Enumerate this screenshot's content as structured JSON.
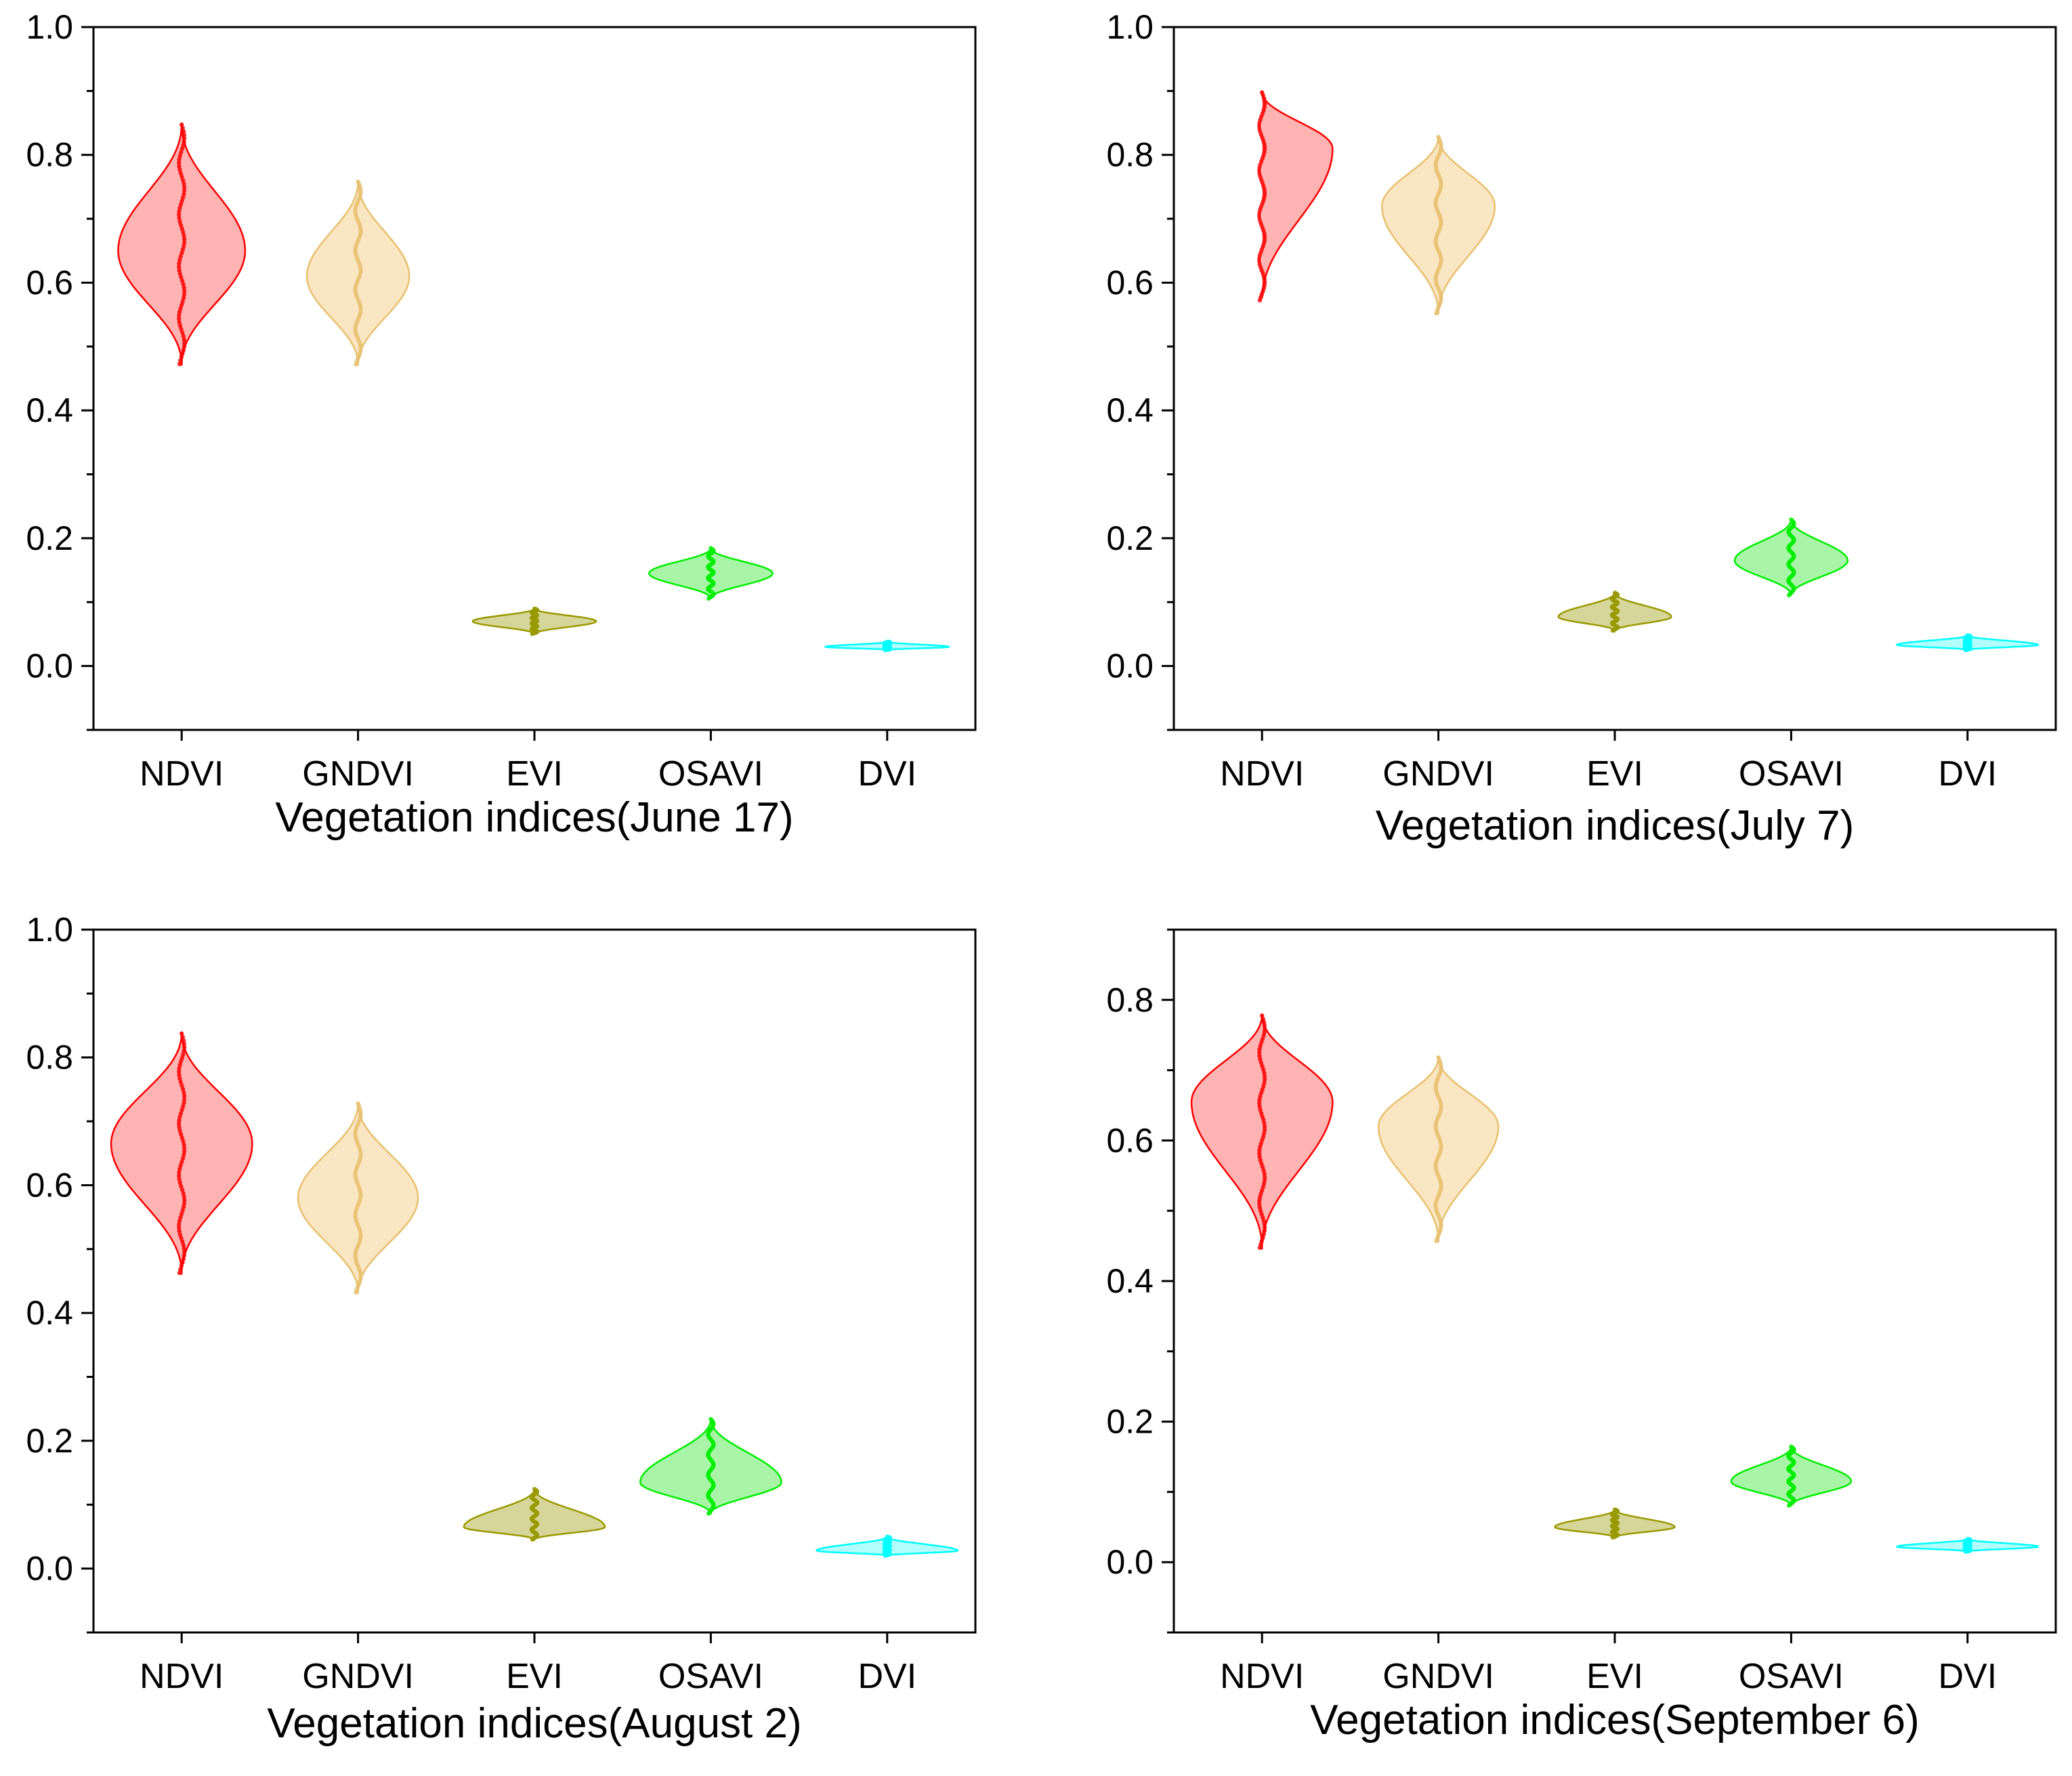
{
  "chart_data": [
    {
      "type": "violin",
      "title": "",
      "xlabel": "Vegetation indices(June 17)",
      "ylabel": "",
      "ylim": [
        -0.1,
        1.0
      ],
      "yticks": [
        "0.0",
        "0.2",
        "0.4",
        "0.6",
        "0.8",
        "1.0"
      ],
      "categories": [
        "NDVI",
        "GNDVI",
        "EVI",
        "OSAVI",
        "DVI"
      ],
      "series": [
        {
          "name": "NDVI",
          "color": "#ff0000",
          "fill": "#ffb3b3",
          "min": 0.47,
          "max": 0.85,
          "mode": 0.65,
          "halfwidth": 0.36
        },
        {
          "name": "GNDVI",
          "color": "#e8c070",
          "fill": "#fae6c2",
          "min": 0.47,
          "max": 0.76,
          "mode": 0.61,
          "halfwidth": 0.29
        },
        {
          "name": "EVI",
          "color": "#999900",
          "fill": "#d6d69a",
          "min": 0.05,
          "max": 0.09,
          "mode": 0.07,
          "halfwidth": 0.35
        },
        {
          "name": "OSAVI",
          "color": "#00ee00",
          "fill": "#a8f5a8",
          "min": 0.105,
          "max": 0.185,
          "mode": 0.145,
          "halfwidth": 0.35
        },
        {
          "name": "DVI",
          "color": "#00ffff",
          "fill": "#b3ffff",
          "min": 0.025,
          "max": 0.038,
          "mode": 0.03,
          "halfwidth": 0.35
        }
      ]
    },
    {
      "type": "violin",
      "title": "",
      "xlabel": "Vegetation indices(July 7)",
      "ylabel": "",
      "ylim": [
        -0.1,
        1.0
      ],
      "yticks": [
        "0.0",
        "0.2",
        "0.4",
        "0.6",
        "0.8",
        "1.0"
      ],
      "categories": [
        "NDVI",
        "GNDVI",
        "EVI",
        "OSAVI",
        "DVI"
      ],
      "series": [
        {
          "name": "NDVI",
          "color": "#ff0000",
          "fill": "#ffb3b3",
          "min": 0.57,
          "max": 0.9,
          "mode": 0.81,
          "halfwidth": 0.4
        },
        {
          "name": "GNDVI",
          "color": "#e8c070",
          "fill": "#fae6c2",
          "min": 0.55,
          "max": 0.83,
          "mode": 0.72,
          "halfwidth": 0.32
        },
        {
          "name": "EVI",
          "color": "#999900",
          "fill": "#d6d69a",
          "min": 0.055,
          "max": 0.115,
          "mode": 0.077,
          "halfwidth": 0.32
        },
        {
          "name": "OSAVI",
          "color": "#00ee00",
          "fill": "#a8f5a8",
          "min": 0.11,
          "max": 0.23,
          "mode": 0.165,
          "halfwidth": 0.32
        },
        {
          "name": "DVI",
          "color": "#00ffff",
          "fill": "#b3ffff",
          "min": 0.025,
          "max": 0.048,
          "mode": 0.033,
          "halfwidth": 0.4
        }
      ]
    },
    {
      "type": "violin",
      "title": "",
      "xlabel": "Vegetation indices(August 2)",
      "ylabel": "",
      "ylim": [
        -0.1,
        1.0
      ],
      "yticks": [
        "0.0",
        "0.2",
        "0.4",
        "0.6",
        "0.8",
        "1.0"
      ],
      "categories": [
        "NDVI",
        "GNDVI",
        "EVI",
        "OSAVI",
        "DVI"
      ],
      "series": [
        {
          "name": "NDVI",
          "color": "#ff0000",
          "fill": "#ffb3b3",
          "min": 0.46,
          "max": 0.84,
          "mode": 0.665,
          "halfwidth": 0.4
        },
        {
          "name": "GNDVI",
          "color": "#e8c070",
          "fill": "#fae6c2",
          "min": 0.43,
          "max": 0.73,
          "mode": 0.58,
          "halfwidth": 0.34
        },
        {
          "name": "EVI",
          "color": "#999900",
          "fill": "#d6d69a",
          "min": 0.045,
          "max": 0.125,
          "mode": 0.065,
          "halfwidth": 0.4
        },
        {
          "name": "OSAVI",
          "color": "#00ee00",
          "fill": "#a8f5a8",
          "min": 0.085,
          "max": 0.235,
          "mode": 0.135,
          "halfwidth": 0.4
        },
        {
          "name": "DVI",
          "color": "#00ffff",
          "fill": "#b3ffff",
          "min": 0.02,
          "max": 0.05,
          "mode": 0.028,
          "halfwidth": 0.4
        }
      ]
    },
    {
      "type": "violin",
      "title": "",
      "xlabel": "Vegetation indices(September 6)",
      "ylabel": "",
      "ylim": [
        -0.1,
        0.9
      ],
      "yticks": [
        "0.0",
        "0.2",
        "0.4",
        "0.6",
        "0.8"
      ],
      "categories": [
        "NDVI",
        "GNDVI",
        "EVI",
        "OSAVI",
        "DVI"
      ],
      "series": [
        {
          "name": "NDVI",
          "color": "#ff0000",
          "fill": "#ffb3b3",
          "min": 0.445,
          "max": 0.78,
          "mode": 0.655,
          "halfwidth": 0.4
        },
        {
          "name": "GNDVI",
          "color": "#e8c070",
          "fill": "#fae6c2",
          "min": 0.455,
          "max": 0.72,
          "mode": 0.62,
          "halfwidth": 0.34
        },
        {
          "name": "EVI",
          "color": "#999900",
          "fill": "#d6d69a",
          "min": 0.035,
          "max": 0.075,
          "mode": 0.05,
          "halfwidth": 0.34
        },
        {
          "name": "OSAVI",
          "color": "#00ee00",
          "fill": "#a8f5a8",
          "min": 0.08,
          "max": 0.165,
          "mode": 0.115,
          "halfwidth": 0.34
        },
        {
          "name": "DVI",
          "color": "#00ffff",
          "fill": "#b3ffff",
          "min": 0.015,
          "max": 0.033,
          "mode": 0.022,
          "halfwidth": 0.4
        }
      ]
    }
  ]
}
